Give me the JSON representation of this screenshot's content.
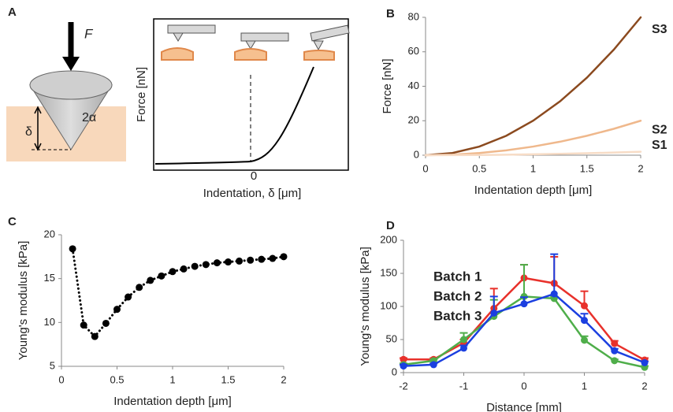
{
  "panel_a": {
    "panel": "A",
    "force": "F",
    "angle": "2α",
    "depth": "δ",
    "ylabel": "Force [nN]",
    "xlabel": "Indentation, δ [μm]",
    "xtick": "0"
  },
  "chart_data": [
    {
      "type": "line",
      "panel": "B",
      "xlabel": "Indentation depth [μm]",
      "ylabel": "Force [nN]",
      "x": [
        0,
        0.25,
        0.5,
        0.75,
        1,
        1.25,
        1.5,
        1.75,
        2
      ],
      "series": [
        {
          "name": "S3",
          "color": "#8b4a1f",
          "values": [
            0,
            1.25,
            5,
            11.25,
            20,
            31.25,
            45,
            61.25,
            80
          ]
        },
        {
          "name": "S2",
          "color": "#efb88c",
          "values": [
            0,
            0.31,
            1.25,
            2.81,
            5,
            7.81,
            11.25,
            15.31,
            20
          ]
        },
        {
          "name": "S1",
          "color": "#f7dcc6",
          "values": [
            0,
            0.03,
            0.13,
            0.28,
            0.5,
            0.78,
            1.13,
            1.53,
            2
          ]
        }
      ],
      "xlim": [
        0,
        2
      ],
      "xticks": [
        0,
        0.5,
        1,
        1.5,
        2
      ],
      "ylim": [
        0,
        80
      ],
      "yticks": [
        0,
        20,
        40,
        60,
        80
      ],
      "legend": "line-end"
    },
    {
      "type": "line",
      "panel": "C",
      "xlabel": "Indentation depth [μm]",
      "ylabel": "Young's modulus [kPa]",
      "x": [
        0.1,
        0.2,
        0.3,
        0.4,
        0.5,
        0.6,
        0.7,
        0.8,
        0.9,
        1.0,
        1.1,
        1.2,
        1.3,
        1.4,
        1.5,
        1.6,
        1.7,
        1.8,
        1.9,
        2.0
      ],
      "values": [
        18.4,
        9.7,
        8.4,
        9.9,
        11.5,
        12.9,
        14,
        14.8,
        15.3,
        15.8,
        16.1,
        16.4,
        16.6,
        16.8,
        16.9,
        17,
        17.1,
        17.2,
        17.3,
        17.5
      ],
      "color": "#000000",
      "linestyle": "dotted",
      "marker": "circle",
      "xlim": [
        0,
        2
      ],
      "xticks": [
        0,
        0.5,
        1,
        1.5,
        2
      ],
      "ylim": [
        5,
        20
      ],
      "yticks": [
        5,
        10,
        15,
        20
      ]
    },
    {
      "type": "line",
      "panel": "D",
      "xlabel": "Distance [mm]",
      "ylabel": "Young's modulus [kPa]",
      "x": [
        -2,
        -1.5,
        -1,
        -0.5,
        0,
        0.5,
        1,
        1.5,
        2
      ],
      "series": [
        {
          "name": "Batch 1",
          "color": "#e8312b",
          "values": [
            20,
            20,
            45,
            97,
            143,
            135,
            101,
            44,
            19
          ],
          "errors": [
            2,
            2,
            5,
            30,
            20,
            40,
            22,
            4,
            3
          ]
        },
        {
          "name": "Batch 2",
          "color": "#4fae4a",
          "values": [
            12,
            18,
            50,
            85,
            115,
            112,
            49,
            18,
            8
          ],
          "errors": [
            2,
            2,
            10,
            25,
            48,
            3,
            6,
            2,
            2
          ]
        },
        {
          "name": "Batch 3",
          "color": "#1b3fe0",
          "values": [
            10,
            12,
            37,
            90,
            104,
            119,
            79,
            33,
            15
          ],
          "errors": [
            2,
            2,
            4,
            25,
            10,
            60,
            10,
            3,
            2
          ]
        }
      ],
      "marker": "circle",
      "xlim": [
        -2,
        2
      ],
      "xticks": [
        -2,
        -1,
        0,
        1,
        2
      ],
      "ylim": [
        0,
        200
      ],
      "yticks": [
        0,
        50,
        100,
        150,
        200
      ],
      "legend": "upper left"
    }
  ]
}
